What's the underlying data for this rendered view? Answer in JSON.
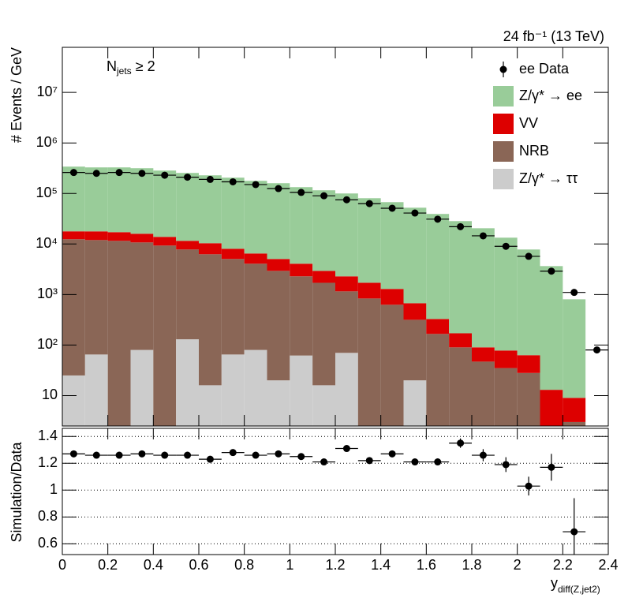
{
  "chart_data": [
    {
      "type": "stacked_histogram",
      "title": "24 fb⁻¹ (13 TeV)",
      "annotation": [
        "N",
        "jets",
        " ≥ 2"
      ],
      "ylabel": "# Events / GeV",
      "log": true,
      "ylim": [
        2.5,
        78000000
      ],
      "yticks": [
        10,
        {
          "value": 100,
          "label": "10²"
        },
        {
          "value": 1000,
          "label": "10³"
        },
        {
          "value": 10000,
          "label": "10⁴"
        },
        {
          "value": 100000,
          "label": "10⁵"
        },
        {
          "value": 1000000,
          "label": "10⁶"
        },
        {
          "value": 10000000,
          "label": "10⁷"
        }
      ],
      "xlim": [
        0,
        2.4
      ],
      "xticks": [
        0,
        0.2,
        0.4,
        0.6,
        0.8,
        1,
        1.2,
        1.4,
        1.6,
        1.8,
        2,
        2.2,
        2.4
      ],
      "legend": "upper right",
      "bins": [
        0,
        0.1,
        0.2,
        0.3,
        0.4,
        0.5,
        0.6,
        0.7,
        0.8,
        0.9,
        1.0,
        1.1,
        1.2,
        1.3,
        1.4,
        1.5,
        1.6,
        1.7,
        1.8,
        1.9,
        2.0,
        2.1,
        2.2,
        2.3
      ],
      "points": {
        "name": "ee Data",
        "color": "#000000",
        "xerr": 0.05,
        "x": [
          0.05,
          0.15,
          0.25,
          0.35,
          0.45,
          0.55,
          0.65,
          0.75,
          0.85,
          0.95,
          1.05,
          1.15,
          1.25,
          1.35,
          1.45,
          1.55,
          1.65,
          1.75,
          1.85,
          1.95,
          2.05,
          2.15,
          2.25,
          2.35
        ],
        "values": [
          260000,
          250000,
          260000,
          250000,
          230000,
          210000,
          190000,
          170000,
          150000,
          125000,
          105000,
          90000,
          75000,
          63000,
          51000,
          41000,
          31000,
          22000,
          14500,
          9000,
          5700,
          2900,
          1100,
          80
        ]
      },
      "series": [
        {
          "name": "Z/γ* → ee",
          "color": "#99cc99",
          "values": [
            322000,
            310200,
            310900,
            300200,
            270000,
            243200,
            218200,
            197400,
            171300,
            154600,
            129300,
            112600,
            97700,
            78800,
            66000,
            51600,
            39000,
            28200,
            20400,
            13260,
            7720,
            3640,
            796
          ]
        },
        {
          "name": "VV",
          "color": "#dd0000",
          "values": [
            5380,
            5810,
            5590,
            5220,
            4530,
            3770,
            4100,
            3000,
            2420,
            2110,
            1780,
            1230,
            1135,
            875,
            663,
            357,
            162,
            81,
            43,
            43,
            35,
            11,
            6
          ]
        },
        {
          "name": "NRB",
          "color": "#8a6656",
          "values": [
            12400,
            11900,
            11550,
            10660,
            9310,
            7650,
            6250,
            4985,
            3990,
            2920,
            2230,
            1690,
            1085,
            835,
            627,
            296,
            166,
            90,
            47,
            35,
            28,
            2,
            3
          ]
        },
        {
          "name": "Z/γ* → ττ",
          "color": "#cccccc",
          "values": [
            25,
            65,
            0,
            80,
            0,
            130,
            16,
            65,
            80,
            20,
            62,
            16,
            70,
            0,
            0,
            20,
            0,
            0,
            0,
            0,
            0,
            0,
            0
          ]
        }
      ]
    },
    {
      "type": "scatter",
      "ylabel": "Simulation/Data",
      "xlabel": [
        "y",
        "diff(Z,jet2)"
      ],
      "xlim": [
        0,
        2.4
      ],
      "xticks": [
        0,
        0.2,
        0.4,
        0.6,
        0.8,
        1,
        1.2,
        1.4,
        1.6,
        1.8,
        2,
        2.2,
        2.4
      ],
      "ylim": [
        0.52,
        1.46
      ],
      "yticks": [
        0.6,
        0.8,
        1,
        1.2,
        1.4
      ],
      "grid": true,
      "xerr": 0.05,
      "color": "#000000",
      "x": [
        0.05,
        0.15,
        0.25,
        0.35,
        0.45,
        0.55,
        0.65,
        0.75,
        0.85,
        0.95,
        1.05,
        1.15,
        1.25,
        1.35,
        1.45,
        1.55,
        1.65,
        1.75,
        1.85,
        1.95,
        2.05,
        2.15,
        2.25
      ],
      "values": [
        1.27,
        1.26,
        1.26,
        1.27,
        1.26,
        1.26,
        1.23,
        1.28,
        1.26,
        1.27,
        1.25,
        1.21,
        1.31,
        1.22,
        1.27,
        1.21,
        1.21,
        1.35,
        1.26,
        1.19,
        1.03,
        1.17,
        0.69
      ],
      "errors": [
        0.005,
        0.005,
        0.005,
        0.005,
        0.005,
        0.005,
        0.006,
        0.007,
        0.007,
        0.008,
        0.009,
        0.01,
        0.012,
        0.014,
        0.016,
        0.02,
        0.025,
        0.035,
        0.045,
        0.055,
        0.07,
        0.1,
        0.25
      ]
    }
  ]
}
